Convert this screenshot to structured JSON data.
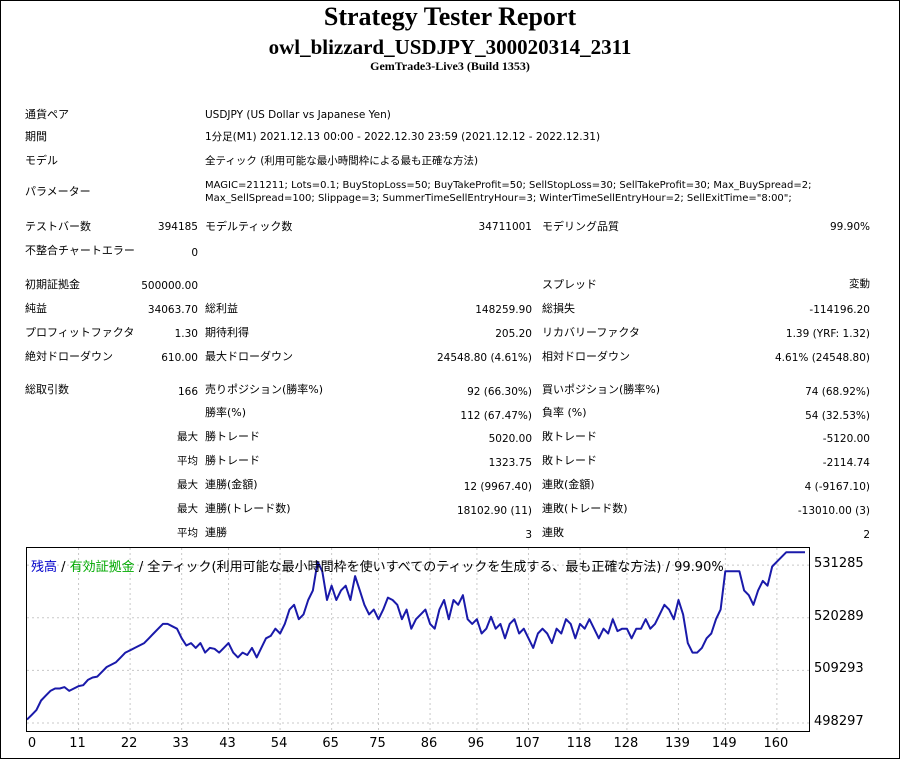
{
  "header": {
    "title": "Strategy Tester Report",
    "ea_name": "owl_blizzard_USDJPY_300020314_2311",
    "server": "GemTrade3-Live3 (Build 1353)"
  },
  "info": {
    "symbol_label": "通貨ペア",
    "symbol_value": "USDJPY (US Dollar vs Japanese Yen)",
    "period_label": "期間",
    "period_value": "1分足(M1) 2021.12.13 00:00 - 2022.12.30 23:59 (2021.12.12 - 2022.12.31)",
    "model_label": "モデル",
    "model_value": "全ティック (利用可能な最小時間枠による最も正確な方法)",
    "params_label": "パラメーター",
    "params_line1": "MAGIC=211211; Lots=0.1; BuyStopLoss=50; BuyTakeProfit=50; SellStopLoss=30; SellTakeProfit=30; Max_BuySpread=2;",
    "params_line2": "Max_SellSpread=100; Slippage=3; SummerTimeSellEntryHour=3; WinterTimeSellEntryHour=2; SellExitTime=\"8:00\";"
  },
  "stats": {
    "bars_label": "テストバー数",
    "bars_value": "394185",
    "ticks_label": "モデルティック数",
    "ticks_value": "34711001",
    "quality_label": "モデリング品質",
    "quality_value": "99.90%",
    "mismatch_label": "不整合チャートエラー",
    "mismatch_value": "0",
    "deposit_label": "初期証拠金",
    "deposit_value": "500000.00",
    "spread_label": "スプレッド",
    "spread_value": "変動",
    "net_label": "純益",
    "net_value": "34063.70",
    "gross_profit_label": "総利益",
    "gross_profit_value": "148259.90",
    "gross_loss_label": "総損失",
    "gross_loss_value": "-114196.20",
    "pf_label": "プロフィットファクタ",
    "pf_value": "1.30",
    "expected_label": "期待利得",
    "expected_value": "205.20",
    "recovery_label": "リカバリーファクタ",
    "recovery_value": "1.39 (YRF: 1.32)",
    "abs_dd_label": "絶対ドローダウン",
    "abs_dd_value": "610.00",
    "max_dd_label": "最大ドローダウン",
    "max_dd_value": "24548.80 (4.61%)",
    "rel_dd_label": "相対ドローダウン",
    "rel_dd_value": "4.61% (24548.80)",
    "trades_label": "総取引数",
    "trades_value": "166",
    "short_label": "売りポジション(勝率%)",
    "short_value": "92 (66.30%)",
    "long_label": "買いポジション(勝率%)",
    "long_value": "74 (68.92%)",
    "win_label": "勝率(%)",
    "win_value": "112 (67.47%)",
    "loss_label": "負率 (%)",
    "loss_value": "54 (32.53%)",
    "max_word": "最大",
    "avg_word": "平均",
    "largest_win_label": "勝トレード",
    "largest_win_value": "5020.00",
    "largest_loss_label": "敗トレード",
    "largest_loss_value": "-5120.00",
    "avg_win_label": "勝トレード",
    "avg_win_value": "1323.75",
    "avg_loss_label": "敗トレード",
    "avg_loss_value": "-2114.74",
    "max_consec_win_label": "連勝(金額)",
    "max_consec_win_value": "12 (9967.40)",
    "max_consec_loss_label": "連敗(金額)",
    "max_consec_loss_value": "4 (-9167.10)",
    "max_consec_profit_label": "連勝(トレード数)",
    "max_consec_profit_value": "18102.90 (11)",
    "max_consec_lossamt_label": "連敗(トレード数)",
    "max_consec_lossamt_value": "-13010.00 (3)",
    "avg_consec_win_label": "連勝",
    "avg_consec_win_value": "3",
    "avg_consec_loss_label": "連敗",
    "avg_consec_loss_value": "2"
  },
  "legend": {
    "balance": "残高",
    "sep1": " / ",
    "equity": "有効証拠金",
    "rest": " / 全ティック(利用可能な最小時間枠を使いすべてのティックを生成する、最も正確な方法) / 99.90%",
    "balance_color": "#0000cc",
    "equity_color": "#00aa00"
  },
  "chart_data": {
    "type": "line",
    "y_ticks": [
      "531285",
      "520289",
      "509293",
      "498297"
    ],
    "x_ticks": [
      "0",
      "11",
      "22",
      "33",
      "43",
      "54",
      "65",
      "75",
      "86",
      "96",
      "107",
      "118",
      "128",
      "139",
      "149",
      "160"
    ],
    "xlim": [
      0,
      166
    ],
    "ylim": [
      498297,
      534034
    ],
    "series": [
      {
        "name": "残高",
        "color": "#1a1aaa",
        "x": [
          0,
          1,
          2,
          3,
          4,
          5,
          6,
          7,
          8,
          9,
          10,
          11,
          12,
          13,
          14,
          15,
          16,
          17,
          18,
          19,
          20,
          21,
          22,
          23,
          24,
          25,
          26,
          27,
          28,
          29,
          30,
          31,
          32,
          33,
          34,
          35,
          36,
          37,
          38,
          39,
          40,
          41,
          42,
          43,
          44,
          45,
          46,
          47,
          48,
          49,
          50,
          51,
          52,
          53,
          54,
          55,
          56,
          57,
          58,
          59,
          60,
          61,
          62,
          63,
          64,
          65,
          66,
          67,
          68,
          69,
          70,
          71,
          72,
          73,
          74,
          75,
          76,
          77,
          78,
          79,
          80,
          81,
          82,
          83,
          84,
          85,
          86,
          87,
          88,
          89,
          90,
          91,
          92,
          93,
          94,
          95,
          96,
          97,
          98,
          99,
          100,
          101,
          102,
          103,
          104,
          105,
          106,
          107,
          108,
          109,
          110,
          111,
          112,
          113,
          114,
          115,
          116,
          117,
          118,
          119,
          120,
          121,
          122,
          123,
          124,
          125,
          126,
          127,
          128,
          129,
          130,
          131,
          132,
          133,
          134,
          135,
          136,
          137,
          138,
          139,
          140,
          141,
          142,
          143,
          144,
          145,
          146,
          147,
          148,
          149,
          150,
          151,
          152,
          153,
          154,
          155,
          156,
          157,
          158,
          159,
          160,
          161,
          162,
          163,
          164,
          165,
          166
        ],
        "values": [
          499000,
          500000,
          501000,
          503000,
          504000,
          505000,
          505500,
          505500,
          505800,
          505000,
          505500,
          506000,
          506200,
          507300,
          507800,
          508000,
          509000,
          510000,
          510500,
          511000,
          512000,
          513000,
          513500,
          514000,
          514500,
          515000,
          516000,
          517000,
          518000,
          519000,
          519000,
          518500,
          518000,
          516000,
          514500,
          515000,
          514000,
          515000,
          513000,
          514000,
          513800,
          513000,
          514000,
          515000,
          513000,
          512000,
          513000,
          512500,
          514000,
          512000,
          514000,
          516000,
          516500,
          518000,
          517000,
          519000,
          522000,
          523000,
          520000,
          521000,
          524000,
          526000,
          532000,
          530000,
          524000,
          527000,
          524000,
          526000,
          527000,
          524000,
          529000,
          526000,
          523000,
          521000,
          522000,
          520000,
          522000,
          524500,
          524000,
          523000,
          520000,
          522000,
          518000,
          520000,
          521000,
          522000,
          519000,
          518000,
          522000,
          524000,
          520000,
          524000,
          523000,
          525000,
          520000,
          519000,
          520000,
          517000,
          518000,
          520500,
          518000,
          519000,
          516000,
          519000,
          520000,
          517000,
          518000,
          516000,
          514000,
          517000,
          518000,
          517000,
          515000,
          518000,
          517000,
          520000,
          519000,
          516000,
          519000,
          518000,
          520000,
          518000,
          516000,
          518000,
          517000,
          520000,
          517500,
          518000,
          518000,
          516000,
          518000,
          518000,
          520000,
          518000,
          519000,
          521000,
          523000,
          522000,
          520000,
          524000,
          521000,
          515000,
          513000,
          513000,
          514000,
          516000,
          517000,
          520000,
          522000,
          530000,
          530000,
          530000,
          530000,
          526000,
          525000,
          523000,
          526000,
          528000,
          527000,
          531000,
          532000,
          533000,
          534000,
          534000,
          534000,
          534000,
          534000
        ]
      }
    ]
  }
}
